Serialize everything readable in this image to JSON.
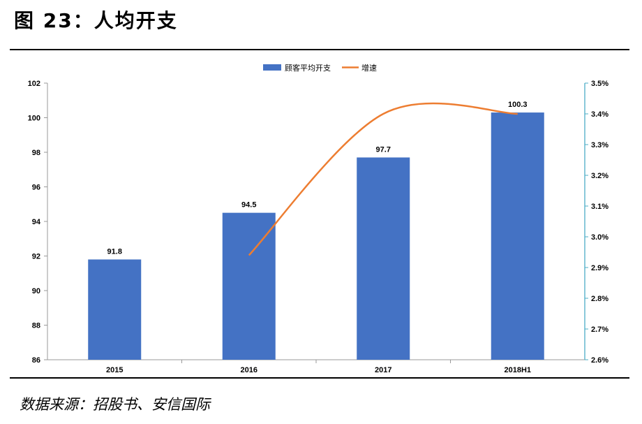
{
  "figure": {
    "title": "图 23：人均开支",
    "source": "数据来源：招股书、安信国际"
  },
  "chart_data": {
    "type": "bar",
    "categories": [
      "2015",
      "2016",
      "2017",
      "2018H1"
    ],
    "series": [
      {
        "name": "顾客平均开支",
        "type": "bar",
        "axis": "left",
        "values": [
          91.8,
          94.5,
          97.7,
          100.3
        ],
        "labels": [
          "91.8",
          "94.5",
          "97.7",
          "100.3"
        ]
      },
      {
        "name": "增速",
        "type": "line",
        "axis": "right",
        "smooth": true,
        "values": [
          null,
          0.0294,
          0.034,
          0.034
        ]
      }
    ],
    "y_left": {
      "min": 86,
      "max": 102,
      "step": 2,
      "ticks": [
        "86",
        "88",
        "90",
        "92",
        "94",
        "96",
        "98",
        "100",
        "102"
      ]
    },
    "y_right": {
      "min": 0.026,
      "max": 0.035,
      "step": 0.001,
      "ticks": [
        "2.6%",
        "2.7%",
        "2.8%",
        "2.9%",
        "3.0%",
        "3.1%",
        "3.2%",
        "3.3%",
        "3.4%",
        "3.5%"
      ]
    },
    "legend": "top-center",
    "grid": false,
    "colors": {
      "bar": "#4472C4",
      "line": "#ED7D31",
      "axis_left": "#999999",
      "axis_right": "#4BACC6"
    }
  }
}
